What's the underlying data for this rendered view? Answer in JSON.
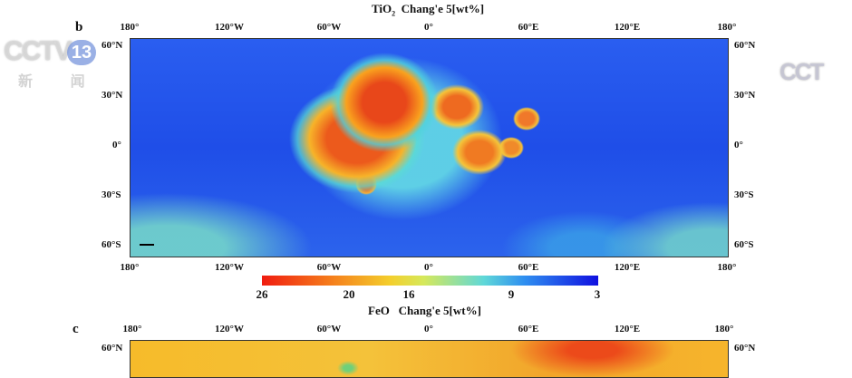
{
  "panel_b": {
    "label": "b",
    "title_prefix": "TiO",
    "title_sub": "2",
    "title_suffix": "Chang'e 5[wt%]",
    "lon_ticks": [
      "180°",
      "120°W",
      "60°W",
      "0°",
      "60°E",
      "120°E",
      "180°"
    ],
    "lat_ticks": [
      "60°N",
      "30°N",
      "0°",
      "30°S",
      "60°S"
    ]
  },
  "colorbar": {
    "labels": [
      "26",
      "20",
      "16",
      "9",
      "3"
    ],
    "values": [
      26,
      20,
      16,
      9,
      3
    ],
    "colors": [
      "#f01c10",
      "#f4ce2c",
      "#5fd8d8",
      "#1010e0"
    ]
  },
  "panel_c": {
    "label": "c",
    "title": "FeO   Chang'e 5[wt%]",
    "lon_ticks": [
      "180°",
      "120°W",
      "60°W",
      "0°",
      "60°E",
      "120°E",
      "180°"
    ],
    "lat_ticks": [
      "60°N"
    ]
  },
  "watermark": {
    "channel": "CCTV",
    "number": "13",
    "sub": "新 闻"
  }
}
